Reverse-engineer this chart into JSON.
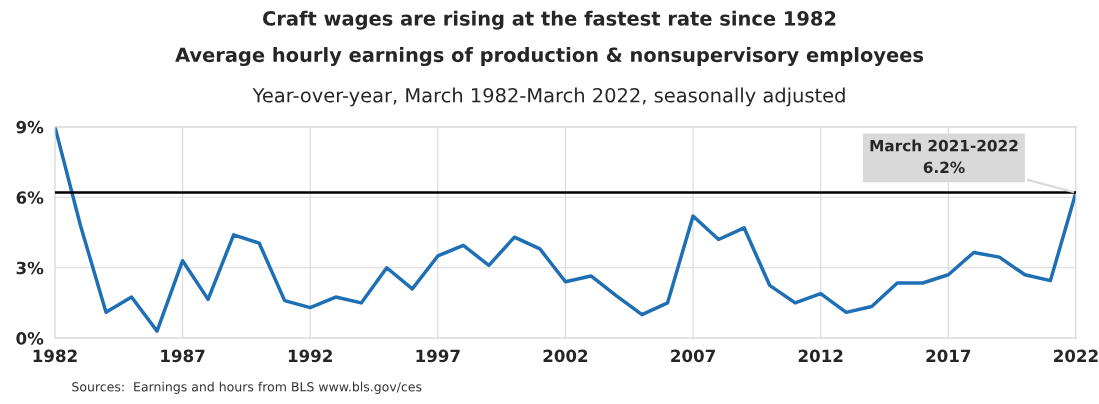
{
  "chart_data": {
    "type": "line",
    "title": "Craft wages are rising at the fastest rate since 1982",
    "subtitle": "Average hourly earnings of production & nonsupervisory employees\nYear-over-year, March 1982-March 2022, seasonally adjusted",
    "x": [
      1982,
      1983,
      1984,
      1985,
      1986,
      1987,
      1988,
      1989,
      1990,
      1991,
      1992,
      1993,
      1994,
      1995,
      1996,
      1997,
      1998,
      1999,
      2000,
      2001,
      2002,
      2003,
      2004,
      2005,
      2006,
      2007,
      2008,
      2009,
      2010,
      2011,
      2012,
      2013,
      2014,
      2015,
      2016,
      2017,
      2018,
      2019,
      2020,
      2021,
      2022
    ],
    "series": [
      {
        "color": "#1f6fb5",
        "values": [
          9.0,
          4.8,
          1.1,
          1.75,
          0.3,
          3.3,
          1.65,
          4.4,
          4.05,
          1.6,
          1.3,
          1.75,
          1.5,
          3.0,
          2.1,
          3.5,
          3.95,
          3.1,
          4.3,
          3.8,
          2.4,
          2.65,
          1.8,
          1.0,
          1.5,
          5.2,
          4.2,
          4.7,
          2.25,
          1.5,
          1.9,
          1.1,
          1.35,
          2.35,
          2.35,
          2.7,
          3.65,
          3.45,
          2.7,
          2.45,
          6.2
        ]
      }
    ],
    "xlim": [
      1982,
      2022
    ],
    "xticks": [
      1982,
      1987,
      1992,
      1997,
      2002,
      2007,
      2012,
      2017,
      2022
    ],
    "ylim": [
      0,
      9
    ],
    "yticks": [
      {
        "value": 0,
        "label": "0%"
      },
      {
        "value": 3,
        "label": "3%"
      },
      {
        "value": 6,
        "label": "6%"
      },
      {
        "value": 9,
        "label": "9%"
      }
    ],
    "ref_lines": [
      {
        "axis": "y",
        "value": 6.2,
        "color": "#000000"
      }
    ],
    "annotations": [
      {
        "text": "March 2021-2022\n6.2%",
        "x": 2022,
        "y": 6.2
      },
      "Sources:  Earnings and hours from BLS www.bls.gov/ces"
    ],
    "grid": true,
    "legend": false,
    "marker": "none",
    "line_style": "solid"
  }
}
